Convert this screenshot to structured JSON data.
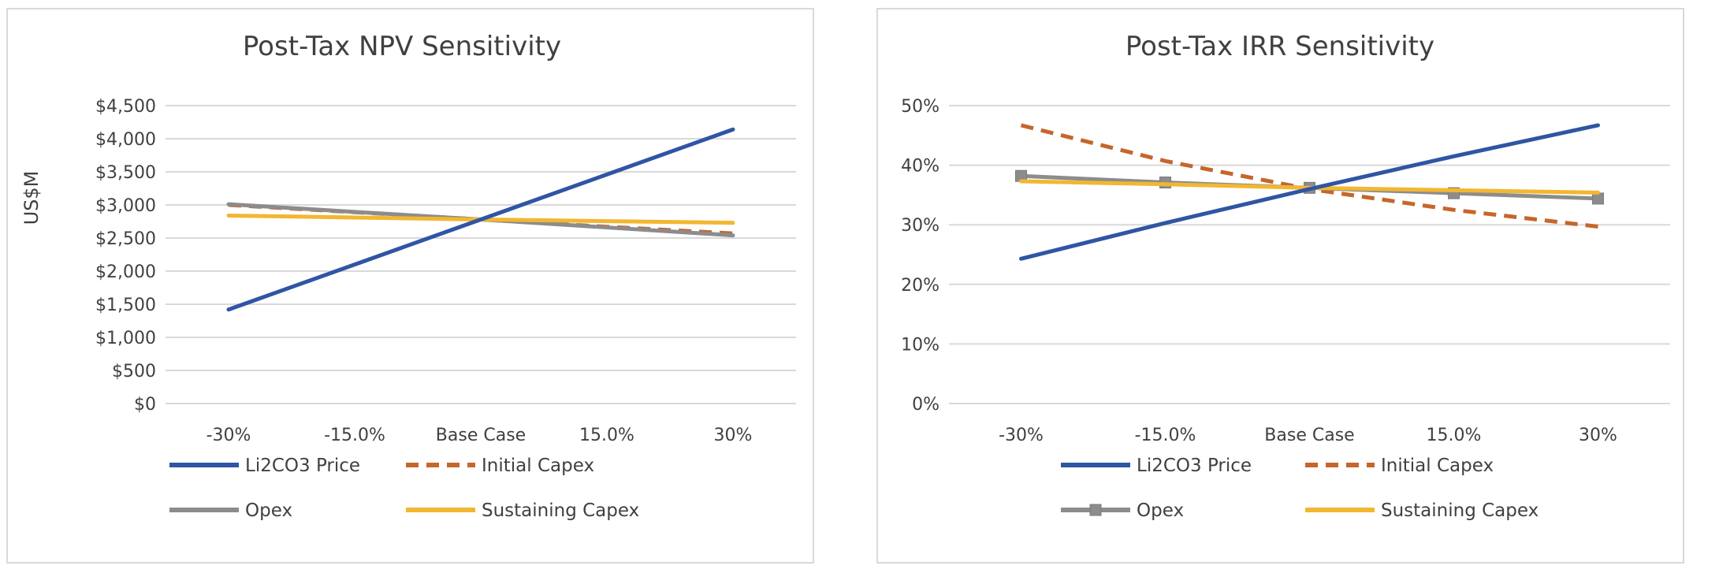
{
  "chart_data": [
    {
      "type": "line",
      "title": "Post-Tax NPV Sensitivity",
      "xlabel": "",
      "ylabel": "US$M",
      "categories": [
        "-30%",
        "-15.0%",
        "Base Case",
        "15.0%",
        "30%"
      ],
      "ylim": [
        0,
        4500
      ],
      "yticks": [
        0,
        500,
        1000,
        1500,
        2000,
        2500,
        3000,
        3500,
        4000,
        4500
      ],
      "ytick_labels": [
        "$0",
        "$500",
        "$1,000",
        "$1,500",
        "$2,000",
        "$2,500",
        "$3,000",
        "$3,500",
        "$4,000",
        "$4,500"
      ],
      "grid": true,
      "legend_position": "bottom",
      "series": [
        {
          "name": "Li2CO3 Price",
          "values": [
            1420,
            2100,
            2780,
            3460,
            4140
          ],
          "color": "#2f55a4",
          "dash": false,
          "marker": false
        },
        {
          "name": "Initial Capex",
          "values": [
            3000,
            2890,
            2780,
            2670,
            2570
          ],
          "color": "#c5662b",
          "dash": true,
          "marker": false
        },
        {
          "name": "Opex",
          "values": [
            3010,
            2895,
            2780,
            2660,
            2540
          ],
          "color": "#8c8c8c",
          "dash": false,
          "marker": false
        },
        {
          "name": "Sustaining Capex",
          "values": [
            2840,
            2810,
            2780,
            2755,
            2730
          ],
          "color": "#f2b731",
          "dash": false,
          "marker": false
        }
      ]
    },
    {
      "type": "line",
      "title": "Post-Tax IRR Sensitivity",
      "xlabel": "",
      "ylabel": "",
      "categories": [
        "-30%",
        "-15.0%",
        "Base Case",
        "15.0%",
        "30%"
      ],
      "ylim": [
        0,
        50
      ],
      "yticks": [
        0,
        10,
        20,
        30,
        40,
        50
      ],
      "ytick_labels": [
        "0%",
        "10%",
        "20%",
        "30%",
        "40%",
        "50%"
      ],
      "grid": true,
      "legend_position": "bottom",
      "series": [
        {
          "name": "Li2CO3 Price",
          "values": [
            24.3,
            30.3,
            36.0,
            41.5,
            46.7
          ],
          "color": "#2f55a4",
          "dash": false,
          "marker": false
        },
        {
          "name": "Initial Capex",
          "values": [
            46.7,
            40.7,
            36.0,
            32.5,
            29.7
          ],
          "color": "#c5662b",
          "dash": true,
          "marker": false
        },
        {
          "name": "Opex",
          "values": [
            38.2,
            37.1,
            36.2,
            35.3,
            34.4
          ],
          "color": "#8c8c8c",
          "dash": false,
          "marker": true
        },
        {
          "name": "Sustaining Capex",
          "values": [
            37.3,
            36.8,
            36.2,
            35.8,
            35.4
          ],
          "color": "#f2b731",
          "dash": false,
          "marker": false
        }
      ]
    }
  ]
}
